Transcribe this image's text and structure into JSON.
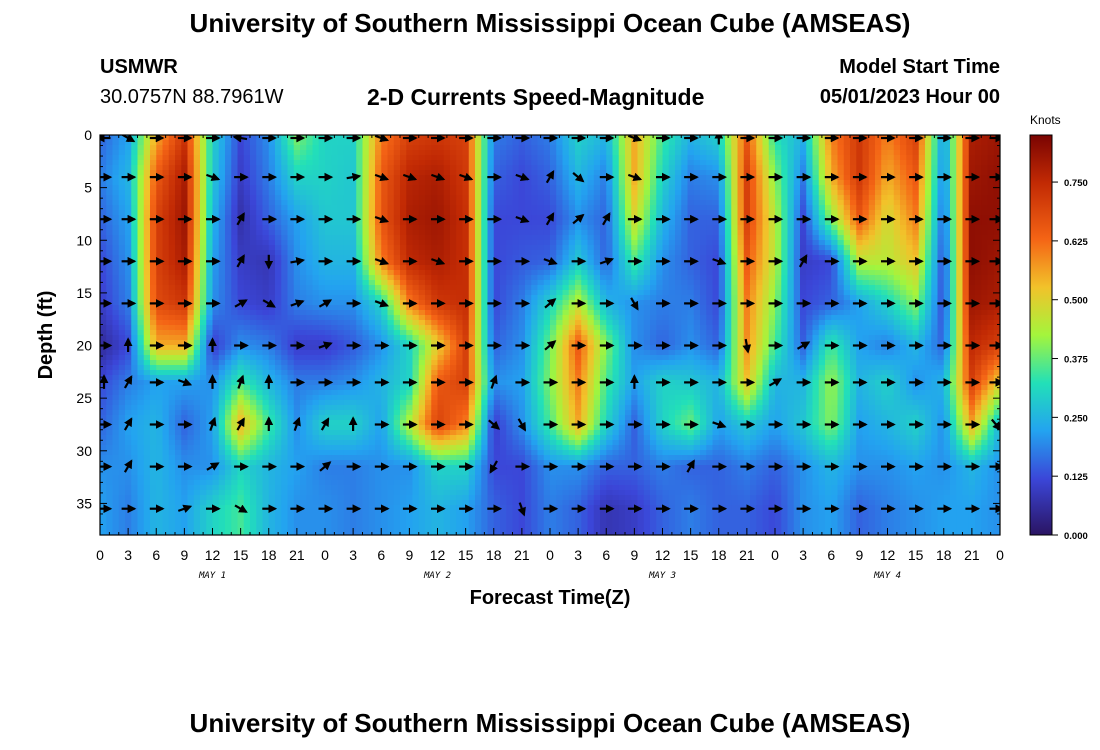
{
  "page": {
    "title": "University of Southern Mississippi Ocean Cube (AMSEAS)",
    "footer_title": "University of Southern Mississippi Ocean Cube (AMSEAS)",
    "station_id": "USMWR",
    "station_coords": "30.0757N  88.7961W",
    "product": "2-D Currents Speed-Magnitude",
    "start_label": "Model Start Time",
    "start_value": "05/01/2023 Hour 00"
  },
  "chart_data": {
    "type": "heatmap",
    "title": "2-D Currents Speed-Magnitude",
    "xlabel": "Forecast Time(Z)",
    "ylabel": "Depth (ft)",
    "x_tick_labels": [
      "0",
      "3",
      "6",
      "9",
      "12",
      "15",
      "18",
      "21",
      "0",
      "3",
      "6",
      "9",
      "12",
      "15",
      "18",
      "21",
      "0",
      "3",
      "6",
      "9",
      "12",
      "15",
      "18",
      "21",
      "0",
      "3",
      "6",
      "9",
      "12",
      "15",
      "18",
      "21",
      "0"
    ],
    "xlim_hours": [
      0,
      96
    ],
    "day_labels": [
      {
        "label": "MAY 1",
        "center_hour": 12
      },
      {
        "label": "MAY 2",
        "center_hour": 36
      },
      {
        "label": "MAY 3",
        "center_hour": 60
      },
      {
        "label": "MAY 4",
        "center_hour": 84
      }
    ],
    "y_ticks": [
      0,
      5,
      10,
      15,
      20,
      25,
      30,
      35
    ],
    "ylim_ft": [
      0,
      38
    ],
    "colorbar": {
      "unit": "Knots",
      "range": [
        0,
        0.85
      ],
      "ticks": [
        0.0,
        0.125,
        0.25,
        0.375,
        0.5,
        0.625,
        0.75
      ],
      "tick_labels": [
        "0.000",
        "0.125",
        "0.250",
        "0.375",
        "0.500",
        "0.625",
        "0.750"
      ]
    },
    "depth_rows_ft": [
      0,
      4,
      8,
      12,
      16,
      20,
      23.5,
      27.5,
      31.5,
      35.5
    ],
    "speed_grid_hours": [
      0,
      3,
      6,
      9,
      12,
      15,
      18,
      21,
      24,
      27,
      30,
      33,
      36,
      39,
      42,
      45,
      48,
      51,
      54,
      57,
      60,
      63,
      66,
      69,
      72,
      75,
      78,
      81,
      84,
      87,
      90,
      93,
      96
    ],
    "speed_grid_knots": [
      [
        0.15,
        0.22,
        0.55,
        0.72,
        0.3,
        0.12,
        0.2,
        0.4,
        0.3,
        0.3,
        0.6,
        0.7,
        0.72,
        0.7,
        0.18,
        0.15,
        0.18,
        0.3,
        0.25,
        0.55,
        0.35,
        0.25,
        0.3,
        0.65,
        0.32,
        0.25,
        0.6,
        0.72,
        0.6,
        0.7,
        0.2,
        0.78,
        0.8
      ],
      [
        0.18,
        0.25,
        0.65,
        0.78,
        0.28,
        0.1,
        0.18,
        0.3,
        0.3,
        0.28,
        0.65,
        0.76,
        0.78,
        0.72,
        0.15,
        0.12,
        0.15,
        0.25,
        0.18,
        0.55,
        0.3,
        0.18,
        0.2,
        0.7,
        0.4,
        0.18,
        0.55,
        0.72,
        0.55,
        0.65,
        0.18,
        0.8,
        0.82
      ],
      [
        0.15,
        0.22,
        0.7,
        0.8,
        0.25,
        0.07,
        0.15,
        0.22,
        0.28,
        0.28,
        0.66,
        0.78,
        0.8,
        0.74,
        0.12,
        0.12,
        0.12,
        0.2,
        0.15,
        0.48,
        0.25,
        0.15,
        0.15,
        0.7,
        0.45,
        0.12,
        0.4,
        0.65,
        0.48,
        0.6,
        0.15,
        0.82,
        0.82
      ],
      [
        0.12,
        0.2,
        0.7,
        0.78,
        0.22,
        0.1,
        0.08,
        0.2,
        0.25,
        0.25,
        0.6,
        0.75,
        0.78,
        0.74,
        0.12,
        0.14,
        0.15,
        0.28,
        0.15,
        0.35,
        0.2,
        0.15,
        0.12,
        0.65,
        0.45,
        0.1,
        0.12,
        0.45,
        0.45,
        0.52,
        0.12,
        0.82,
        0.8
      ],
      [
        0.1,
        0.18,
        0.68,
        0.72,
        0.2,
        0.12,
        0.1,
        0.18,
        0.2,
        0.2,
        0.3,
        0.6,
        0.72,
        0.74,
        0.12,
        0.18,
        0.3,
        0.45,
        0.25,
        0.2,
        0.18,
        0.18,
        0.12,
        0.6,
        0.4,
        0.12,
        0.15,
        0.22,
        0.3,
        0.4,
        0.12,
        0.8,
        0.78
      ],
      [
        0.05,
        0.12,
        0.55,
        0.55,
        0.1,
        0.2,
        0.18,
        0.1,
        0.1,
        0.14,
        0.2,
        0.3,
        0.5,
        0.7,
        0.15,
        0.2,
        0.38,
        0.65,
        0.4,
        0.2,
        0.15,
        0.2,
        0.15,
        0.58,
        0.35,
        0.15,
        0.35,
        0.22,
        0.18,
        0.25,
        0.15,
        0.75,
        0.7
      ],
      [
        0.12,
        0.18,
        0.22,
        0.22,
        0.2,
        0.35,
        0.25,
        0.18,
        0.18,
        0.2,
        0.25,
        0.3,
        0.65,
        0.7,
        0.2,
        0.22,
        0.4,
        0.6,
        0.35,
        0.22,
        0.3,
        0.28,
        0.25,
        0.52,
        0.25,
        0.25,
        0.42,
        0.25,
        0.3,
        0.2,
        0.25,
        0.7,
        0.5
      ],
      [
        0.15,
        0.22,
        0.25,
        0.15,
        0.22,
        0.55,
        0.35,
        0.2,
        0.3,
        0.3,
        0.22,
        0.45,
        0.7,
        0.6,
        0.1,
        0.2,
        0.35,
        0.55,
        0.3,
        0.15,
        0.3,
        0.38,
        0.22,
        0.28,
        0.22,
        0.28,
        0.4,
        0.22,
        0.25,
        0.3,
        0.2,
        0.55,
        0.25
      ],
      [
        0.2,
        0.2,
        0.25,
        0.2,
        0.2,
        0.3,
        0.25,
        0.22,
        0.18,
        0.18,
        0.2,
        0.2,
        0.3,
        0.3,
        0.12,
        0.12,
        0.2,
        0.2,
        0.15,
        0.15,
        0.18,
        0.15,
        0.15,
        0.18,
        0.15,
        0.2,
        0.25,
        0.2,
        0.2,
        0.22,
        0.2,
        0.25,
        0.2
      ],
      [
        0.22,
        0.18,
        0.25,
        0.22,
        0.3,
        0.35,
        0.25,
        0.2,
        0.2,
        0.18,
        0.2,
        0.22,
        0.25,
        0.22,
        0.15,
        0.12,
        0.18,
        0.15,
        0.08,
        0.1,
        0.15,
        0.18,
        0.15,
        0.15,
        0.12,
        0.2,
        0.22,
        0.15,
        0.18,
        0.2,
        0.22,
        0.22,
        0.2
      ]
    ],
    "arrow_rows_ft": [
      0,
      4,
      8,
      12,
      16,
      20,
      23.5,
      27.5,
      31.5,
      35.5
    ],
    "arrow_dir_deg": [
      [
        180,
        30,
        0,
        0,
        0,
        190,
        0,
        0,
        0,
        0,
        20,
        0,
        0,
        0,
        0,
        0,
        0,
        0,
        0,
        20,
        0,
        0,
        270,
        0,
        0,
        0,
        0,
        0,
        0,
        0,
        0,
        0,
        0
      ],
      [
        0,
        0,
        0,
        0,
        20,
        0,
        0,
        0,
        0,
        350,
        20,
        20,
        20,
        20,
        0,
        20,
        300,
        40,
        0,
        20,
        0,
        0,
        0,
        0,
        0,
        0,
        0,
        0,
        0,
        0,
        0,
        0,
        0
      ],
      [
        0,
        0,
        0,
        0,
        0,
        300,
        0,
        0,
        0,
        0,
        20,
        0,
        0,
        0,
        0,
        20,
        300,
        320,
        300,
        0,
        0,
        0,
        0,
        0,
        0,
        0,
        0,
        0,
        0,
        0,
        0,
        0,
        0
      ],
      [
        0,
        0,
        0,
        0,
        0,
        300,
        90,
        350,
        0,
        0,
        20,
        0,
        20,
        0,
        0,
        0,
        20,
        0,
        340,
        0,
        0,
        0,
        20,
        0,
        0,
        300,
        0,
        0,
        0,
        0,
        0,
        0,
        0
      ],
      [
        0,
        0,
        0,
        0,
        0,
        330,
        30,
        340,
        330,
        0,
        20,
        0,
        0,
        0,
        0,
        0,
        320,
        0,
        0,
        60,
        0,
        0,
        0,
        0,
        0,
        0,
        0,
        0,
        0,
        0,
        0,
        0,
        0
      ],
      [
        0,
        270,
        0,
        0,
        270,
        0,
        0,
        0,
        340,
        0,
        0,
        0,
        0,
        0,
        0,
        0,
        320,
        0,
        0,
        0,
        0,
        0,
        0,
        80,
        0,
        330,
        0,
        0,
        0,
        0,
        0,
        0,
        0
      ],
      [
        270,
        300,
        0,
        20,
        270,
        290,
        270,
        0,
        0,
        0,
        0,
        0,
        0,
        0,
        290,
        0,
        0,
        0,
        0,
        270,
        0,
        0,
        0,
        0,
        330,
        0,
        0,
        0,
        0,
        0,
        0,
        0,
        0
      ],
      [
        0,
        300,
        0,
        0,
        290,
        300,
        270,
        290,
        300,
        270,
        0,
        0,
        0,
        0,
        40,
        60,
        0,
        0,
        0,
        0,
        0,
        0,
        20,
        0,
        0,
        0,
        0,
        0,
        0,
        0,
        0,
        0,
        50
      ],
      [
        0,
        300,
        0,
        0,
        330,
        0,
        0,
        0,
        320,
        0,
        0,
        0,
        0,
        0,
        120,
        0,
        0,
        0,
        0,
        0,
        0,
        300,
        0,
        0,
        0,
        0,
        0,
        0,
        0,
        0,
        0,
        0,
        0
      ],
      [
        0,
        0,
        0,
        340,
        0,
        30,
        0,
        0,
        0,
        0,
        0,
        0,
        0,
        0,
        0,
        70,
        0,
        0,
        0,
        0,
        0,
        0,
        0,
        0,
        0,
        0,
        0,
        0,
        0,
        0,
        0,
        0,
        0
      ]
    ]
  }
}
